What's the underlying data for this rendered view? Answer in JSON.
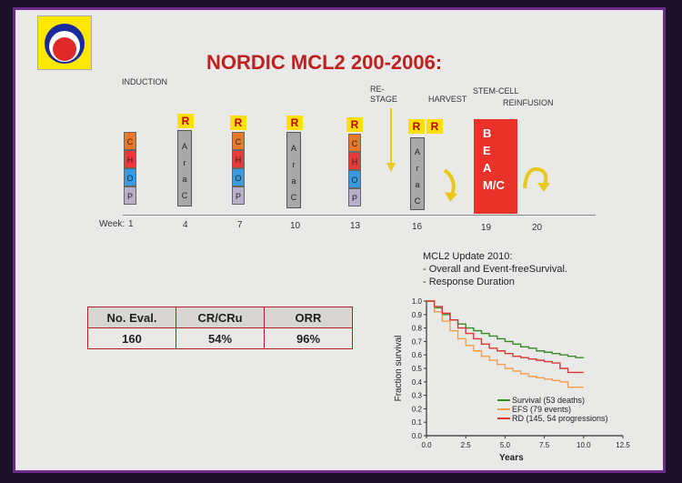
{
  "title": "NORDIC MCL2 200-2006:",
  "phases": {
    "induction": "INDUCTION",
    "restage": "RE-\nSTAGE",
    "restage1": "RE-",
    "restage2": "STAGE",
    "harvest": "HARVEST",
    "stemcell1": "STEM-CELL",
    "stemcell2": "REINFUSION"
  },
  "chop": [
    "C",
    "H",
    "O",
    "P"
  ],
  "arac": [
    "A",
    "r",
    "a",
    "C"
  ],
  "r_label": "R",
  "beam": [
    "B",
    "E",
    "A",
    "M/C"
  ],
  "weeks": {
    "label": "Week:",
    "values": [
      "1",
      "4",
      "7",
      "10",
      "13",
      "16",
      "19",
      "20"
    ]
  },
  "update": {
    "line1": "MCL2 Update 2010:",
    "line2": "- Overall and Event-freeSurvival.",
    "line3": "- Response Duration"
  },
  "table": {
    "headers": [
      "No. Eval.",
      "CR/CRu",
      "ORR"
    ],
    "row": [
      "160",
      "54%",
      "96%"
    ]
  },
  "colors": {
    "c": "#e8782a",
    "h": "#e83a3a",
    "o": "#3a9ae0",
    "p": "#b8b0c8",
    "arac": "#a8a8a8",
    "r_bg": "#ffe000",
    "beam": "#e8322a",
    "arrow": "#e8c818",
    "survival": "#3a8a2a",
    "efs": "#f0a050",
    "rd": "#d83a3a"
  },
  "chart_data": {
    "type": "line",
    "xlabel": "Years",
    "ylabel": "Fraction survival",
    "xlim": [
      0,
      12.5
    ],
    "ylim": [
      0,
      1.0
    ],
    "xticks": [
      "0.0",
      "2.5",
      "5.0",
      "7.5",
      "10.0",
      "12.5"
    ],
    "yticks": [
      "0.0",
      "0.1",
      "0.2",
      "0.3",
      "0.4",
      "0.5",
      "0.6",
      "0.7",
      "0.8",
      "0.9",
      "1.0"
    ],
    "series": [
      {
        "name": "Survival (53 deaths)",
        "x": [
          0,
          0.5,
          1,
          1.5,
          2,
          2.5,
          3,
          3.5,
          4,
          4.5,
          5,
          5.5,
          6,
          6.5,
          7,
          7.5,
          8,
          8.5,
          9,
          9.5,
          10
        ],
        "y": [
          1.0,
          0.95,
          0.9,
          0.86,
          0.83,
          0.8,
          0.78,
          0.76,
          0.74,
          0.72,
          0.7,
          0.68,
          0.66,
          0.65,
          0.63,
          0.62,
          0.61,
          0.6,
          0.59,
          0.58,
          0.58
        ]
      },
      {
        "name": "EFS (79 events)",
        "x": [
          0,
          0.5,
          1,
          1.5,
          2,
          2.5,
          3,
          3.5,
          4,
          4.5,
          5,
          5.5,
          6,
          6.5,
          7,
          7.5,
          8,
          8.5,
          9,
          9.5,
          10
        ],
        "y": [
          1.0,
          0.92,
          0.85,
          0.78,
          0.72,
          0.67,
          0.63,
          0.59,
          0.56,
          0.53,
          0.5,
          0.48,
          0.46,
          0.44,
          0.43,
          0.42,
          0.41,
          0.4,
          0.36,
          0.36,
          0.36
        ]
      },
      {
        "name": "RD (145, 54 progressions)",
        "x": [
          0,
          0.5,
          1,
          1.5,
          2,
          2.5,
          3,
          3.5,
          4,
          4.5,
          5,
          5.5,
          6,
          6.5,
          7,
          7.5,
          8,
          8.5,
          9,
          9.5,
          10
        ],
        "y": [
          1.0,
          0.96,
          0.91,
          0.86,
          0.8,
          0.76,
          0.72,
          0.68,
          0.65,
          0.63,
          0.61,
          0.59,
          0.58,
          0.57,
          0.56,
          0.55,
          0.54,
          0.5,
          0.47,
          0.47,
          0.47
        ]
      }
    ],
    "legend": "bottom-right"
  }
}
